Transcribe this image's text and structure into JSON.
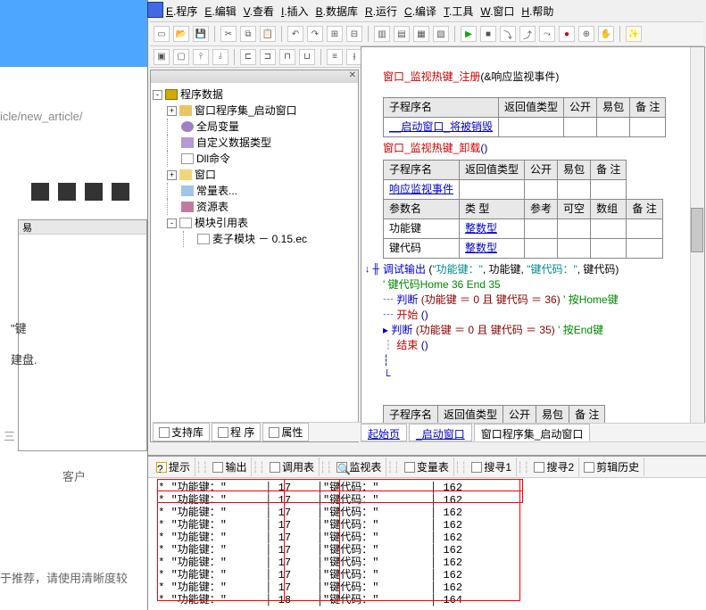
{
  "left": {
    "url": "icle/new_article/",
    "txt1": "\"键",
    "txt2": "建盘.",
    "txt3": "   三",
    "txt4": "客户",
    "txt5": "于推荐，请使用清晰度较"
  },
  "menu": {
    "items": [
      "E.程序",
      "E.编辑",
      "V.查看",
      "I.插入",
      "B.数据库",
      "R.运行",
      "C.编译",
      "T.工具",
      "W.窗口",
      "H.帮助"
    ]
  },
  "tree": {
    "title": "程序数据",
    "root_icon": "prg",
    "items": [
      {
        "ind": 2,
        "tg": "+",
        "ic": "win",
        "label": "窗口程序集_启动窗口"
      },
      {
        "ind": 2,
        "tg": "",
        "ic": "glob",
        "label": "全局变量"
      },
      {
        "ind": 2,
        "tg": "",
        "ic": "type",
        "label": "自定义数据类型"
      },
      {
        "ind": 2,
        "tg": "",
        "ic": "dll",
        "label": "Dll命令"
      },
      {
        "ind": 2,
        "tg": "+",
        "ic": "folder",
        "label": "窗口"
      },
      {
        "ind": 2,
        "tg": "",
        "ic": "const",
        "label": "常量表..."
      },
      {
        "ind": 2,
        "tg": "",
        "ic": "res",
        "label": "资源表"
      },
      {
        "ind": 2,
        "tg": "-",
        "ic": "mod",
        "label": "模块引用表"
      },
      {
        "ind": 3,
        "tg": "",
        "ic": "file",
        "label": "麦子模块 － 0.15.ec"
      }
    ],
    "tabs": [
      "支持库",
      "程 序",
      "属性"
    ]
  },
  "code": {
    "line_top": {
      "a": "窗口_监视热键_注册",
      "b": "(&响应监视事件)"
    },
    "tbl1": {
      "headers": [
        "子程序名",
        "返回值类型",
        "公开",
        "易包",
        "备 注"
      ],
      "row": [
        "__启动窗口_将被销毁",
        "",
        "",
        "",
        ""
      ]
    },
    "line_unload": {
      "a": "窗口_监视热键_卸载",
      "b": "()"
    },
    "tbl2": {
      "headers": [
        "子程序名",
        "返回值类型",
        "公开",
        "易包",
        "备 注"
      ],
      "row": [
        "响应监视事件",
        "",
        "",
        "",
        ""
      ],
      "sub_headers": [
        "参数名",
        "类 型",
        "参考",
        "可空",
        "数组",
        "备 注"
      ],
      "rows": [
        [
          "功能键",
          "整数型",
          "",
          "",
          "",
          ""
        ],
        [
          "键代码",
          "整数型",
          "",
          "",
          "",
          ""
        ]
      ]
    },
    "l_dbgout": {
      "kw": "调试输出",
      "a": "(",
      "s1": "\"功能键：\"",
      "c1": ", 功能键, ",
      "s2": "\"键代码：\"",
      "c2": ", 键代码)"
    },
    "l_comment1": "' 键代码Home 36 End 35",
    "l_judge1": {
      "kw": "判断",
      "body": "(功能键 ＝ 0 且 键代码 ＝ 36)",
      "c": "' 按Home键"
    },
    "l_begin": "开始",
    "l_begin_p": "()",
    "l_judge2": {
      "kw": "判断",
      "body": "(功能键 ＝ 0 且 键代码 ＝ 35)",
      "c": "' 按End键"
    },
    "l_end": "结束",
    "l_end_p": "()",
    "tbl3": {
      "headers": [
        "子程序名",
        "返回值类型",
        "公开",
        "易包",
        "备 注"
      ]
    },
    "tabs": [
      {
        "t": "起始页",
        "lk": true
      },
      {
        "t": "_启动窗口",
        "lk": true
      },
      {
        "t": "窗口程序集_启动窗口",
        "lk": false
      }
    ]
  },
  "bottom": {
    "tabs": [
      {
        "ic": "#d4a800",
        "t": "提示"
      },
      {
        "ic": "#888",
        "t": "输出"
      },
      {
        "ic": "#888",
        "t": "调用表"
      },
      {
        "ic": "#888",
        "t": "监视表"
      },
      {
        "ic": "#888",
        "t": "变量表"
      },
      {
        "ic": "#888",
        "t": "搜寻1"
      },
      {
        "ic": "#888",
        "t": "搜寻2"
      },
      {
        "ic": "#888",
        "t": "剪辑历史"
      }
    ],
    "rows": [
      {
        "a": "* \"功能键：\"",
        "b": "17",
        "c": "\"键代码：\"",
        "d": "162"
      },
      {
        "a": "* \"功能键：\"",
        "b": "17",
        "c": "\"键代码：\"",
        "d": "162"
      },
      {
        "a": "* \"功能键：\"",
        "b": "17",
        "c": "\"键代码：\"",
        "d": "162"
      },
      {
        "a": "* \"功能键：\"",
        "b": "17",
        "c": "\"键代码：\"",
        "d": "162"
      },
      {
        "a": "* \"功能键：\"",
        "b": "17",
        "c": "\"键代码：\"",
        "d": "162"
      },
      {
        "a": "* \"功能键：\"",
        "b": "17",
        "c": "\"键代码：\"",
        "d": "162"
      },
      {
        "a": "* \"功能键：\"",
        "b": "17",
        "c": "\"键代码：\"",
        "d": "162"
      },
      {
        "a": "* \"功能键：\"",
        "b": "17",
        "c": "\"键代码：\"",
        "d": "162"
      },
      {
        "a": "* \"功能键：\"",
        "b": "17",
        "c": "\"键代码：\"",
        "d": "162"
      },
      {
        "a": "* \"功能键：\"",
        "b": "18",
        "c": "\"键代码：\"",
        "d": "164"
      }
    ]
  }
}
